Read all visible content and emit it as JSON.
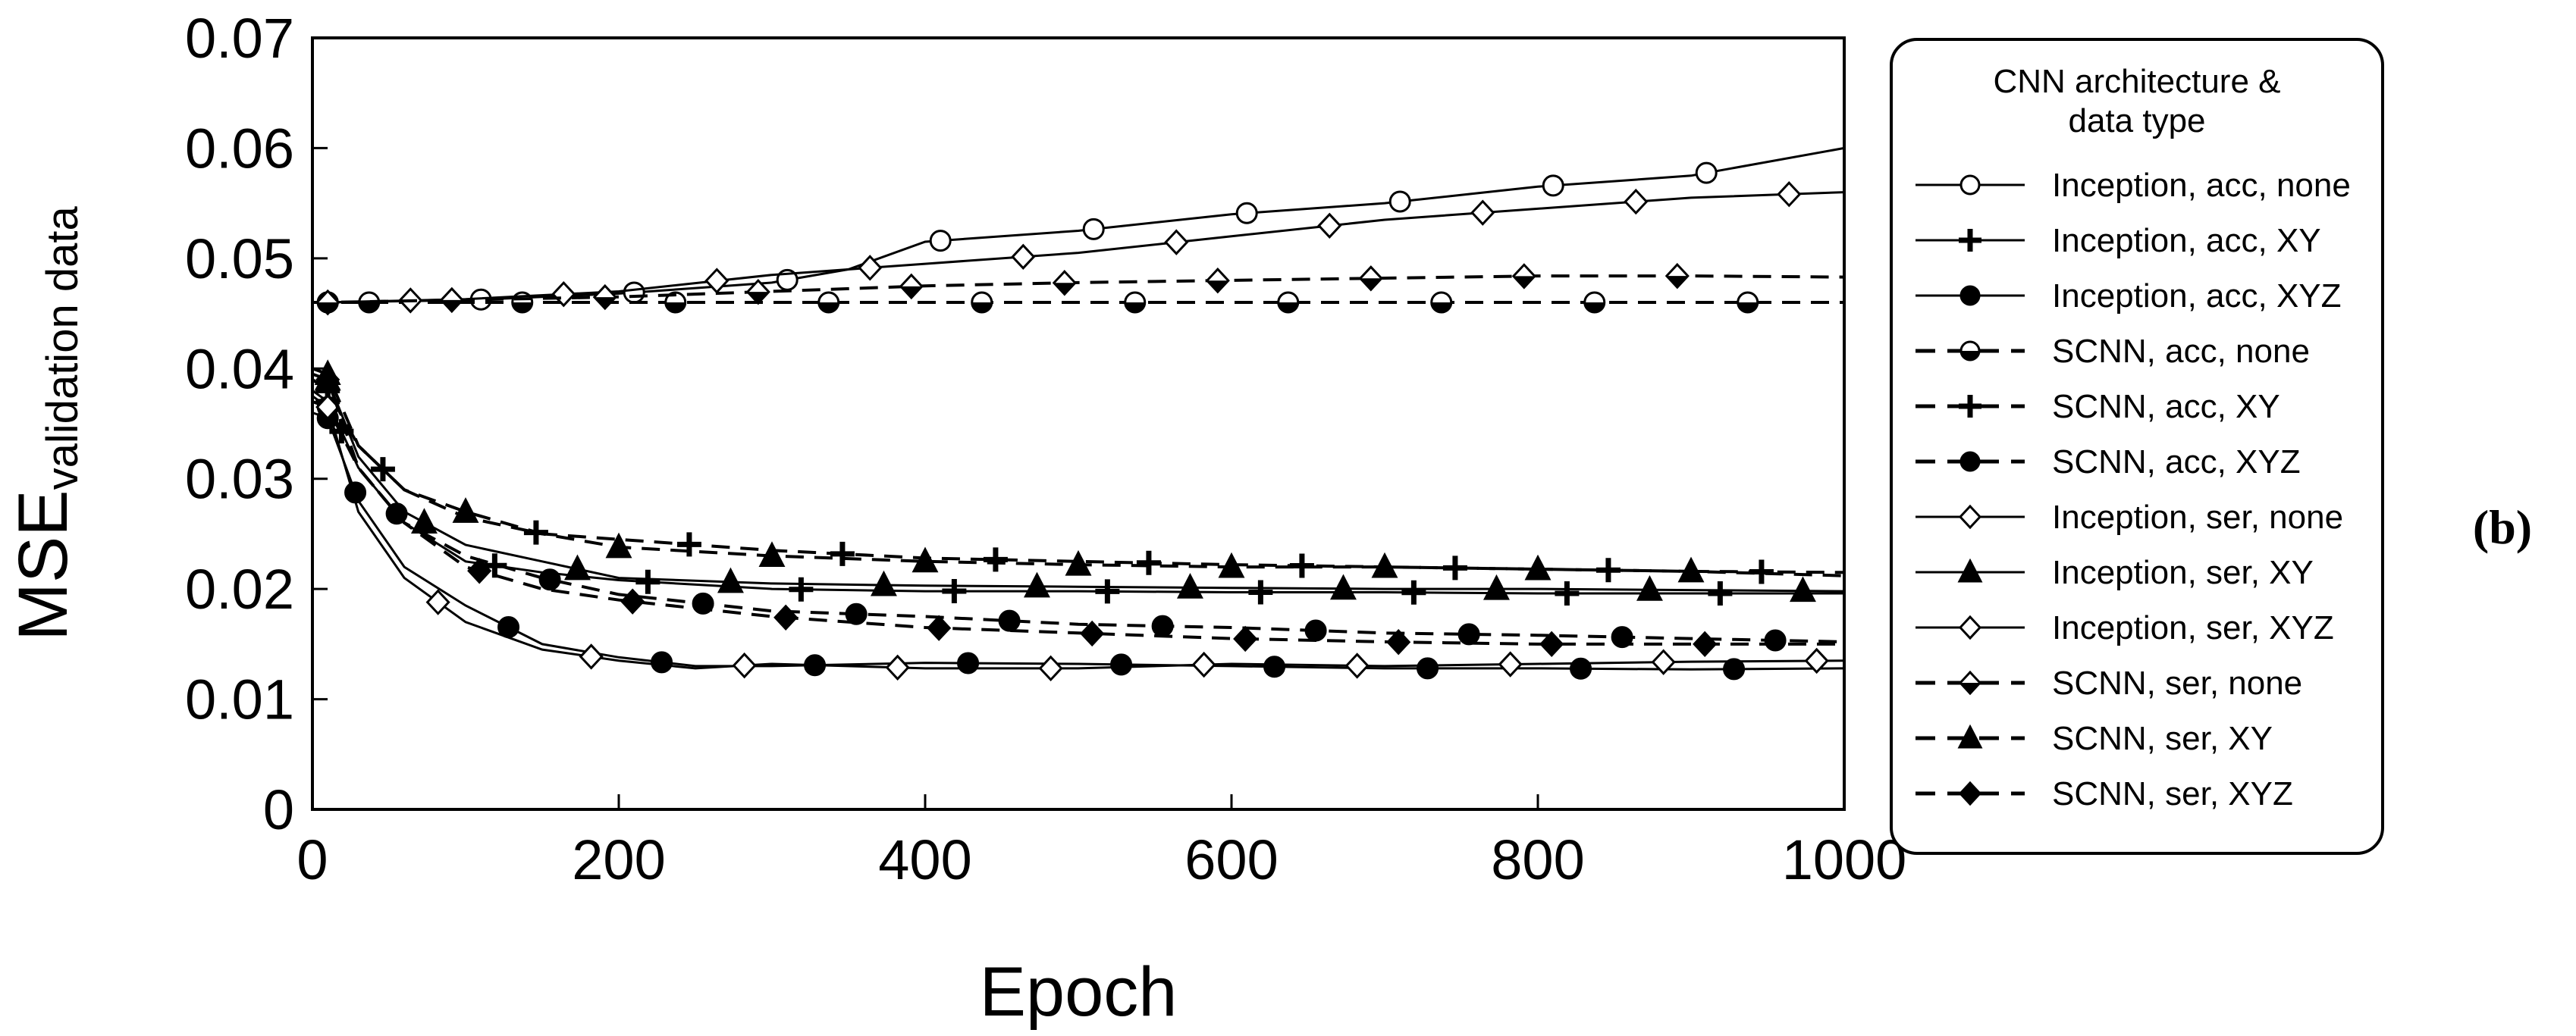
{
  "panel_label": "(b)",
  "chart_data": {
    "type": "line",
    "xlabel": "Epoch",
    "ylabel_main": "MSE",
    "ylabel_sub": "validation data",
    "xlim": [
      0,
      1000
    ],
    "ylim": [
      0,
      0.07
    ],
    "xticks": [
      0,
      200,
      400,
      600,
      800,
      1000
    ],
    "xtick_labels": [
      "0",
      "200",
      "400",
      "600",
      "800",
      "1000"
    ],
    "yticks": [
      0,
      0.01,
      0.02,
      0.03,
      0.04,
      0.05,
      0.06,
      0.07
    ],
    "ytick_labels": [
      "0",
      "0.01",
      "0.02",
      "0.03",
      "0.04",
      "0.05",
      "0.06",
      "0.07"
    ],
    "legend_title_line1": "CNN architecture &",
    "legend_title_line2": "data type",
    "legend_position": "right-outside",
    "series": [
      {
        "name": "Inception, acc, none",
        "dash": "solid",
        "marker": "circle-open",
        "x": [
          0,
          10,
          100,
          200,
          300,
          350,
          400,
          500,
          600,
          700,
          800,
          900,
          1000
        ],
        "y": [
          0.046,
          0.046,
          0.0462,
          0.0468,
          0.0478,
          0.049,
          0.0515,
          0.0525,
          0.054,
          0.055,
          0.0565,
          0.0575,
          0.06
        ]
      },
      {
        "name": "Inception, acc, XY",
        "dash": "solid",
        "marker": "plus",
        "x": [
          0,
          10,
          30,
          60,
          100,
          150,
          200,
          300,
          400,
          500,
          600,
          700,
          800,
          900,
          1000
        ],
        "y": [
          0.038,
          0.037,
          0.031,
          0.026,
          0.0225,
          0.0215,
          0.0208,
          0.02,
          0.0198,
          0.0198,
          0.0197,
          0.0197,
          0.0196,
          0.0196,
          0.0196
        ]
      },
      {
        "name": "Inception, acc, XYZ",
        "dash": "solid",
        "marker": "circle-filled",
        "x": [
          0,
          10,
          30,
          60,
          100,
          150,
          200,
          250,
          300,
          400,
          500,
          600,
          700,
          800,
          900,
          1000
        ],
        "y": [
          0.036,
          0.0355,
          0.028,
          0.022,
          0.0185,
          0.015,
          0.0138,
          0.013,
          0.013,
          0.0133,
          0.0132,
          0.013,
          0.0128,
          0.0128,
          0.0127,
          0.0128
        ]
      },
      {
        "name": "SCNN, acc, none",
        "dash": "dash",
        "marker": "circle-half",
        "x": [
          0,
          10,
          200,
          400,
          600,
          800,
          1000
        ],
        "y": [
          0.046,
          0.046,
          0.046,
          0.046,
          0.046,
          0.046,
          0.046
        ]
      },
      {
        "name": "SCNN, acc, XY",
        "dash": "dash",
        "marker": "plus",
        "x": [
          0,
          10,
          30,
          60,
          100,
          150,
          200,
          300,
          400,
          500,
          600,
          700,
          800,
          900,
          1000
        ],
        "y": [
          0.039,
          0.038,
          0.033,
          0.029,
          0.0265,
          0.025,
          0.0245,
          0.0235,
          0.0228,
          0.0225,
          0.0222,
          0.022,
          0.0218,
          0.0216,
          0.0215
        ]
      },
      {
        "name": "SCNN, acc, XYZ",
        "dash": "dash",
        "marker": "circle-filled",
        "x": [
          0,
          10,
          30,
          60,
          100,
          150,
          200,
          300,
          400,
          500,
          600,
          700,
          800,
          900,
          1000
        ],
        "y": [
          0.037,
          0.0365,
          0.031,
          0.026,
          0.023,
          0.021,
          0.0195,
          0.018,
          0.0175,
          0.0168,
          0.0165,
          0.016,
          0.0158,
          0.0155,
          0.0152
        ]
      },
      {
        "name": "Inception, ser, none",
        "dash": "solid",
        "marker": "diamond-open",
        "x": [
          0,
          10,
          100,
          200,
          300,
          400,
          500,
          600,
          700,
          800,
          900,
          1000
        ],
        "y": [
          0.046,
          0.046,
          0.0463,
          0.047,
          0.0485,
          0.0495,
          0.0505,
          0.052,
          0.0535,
          0.0545,
          0.0555,
          0.056
        ]
      },
      {
        "name": "Inception, ser, XY",
        "dash": "solid",
        "marker": "triangle-filled",
        "x": [
          0,
          10,
          30,
          60,
          100,
          150,
          200,
          300,
          400,
          500,
          600,
          700,
          800,
          900,
          1000
        ],
        "y": [
          0.0395,
          0.039,
          0.032,
          0.027,
          0.024,
          0.0225,
          0.021,
          0.0205,
          0.0203,
          0.0202,
          0.0201,
          0.02,
          0.02,
          0.0199,
          0.0198
        ]
      },
      {
        "name": "Inception, ser, XYZ",
        "dash": "solid",
        "marker": "diamond-open",
        "x": [
          0,
          10,
          30,
          60,
          100,
          150,
          200,
          250,
          300,
          400,
          500,
          600,
          700,
          800,
          900,
          1000
        ],
        "y": [
          0.0375,
          0.0365,
          0.027,
          0.021,
          0.017,
          0.0145,
          0.0135,
          0.0128,
          0.0132,
          0.0128,
          0.0128,
          0.0132,
          0.013,
          0.0132,
          0.0134,
          0.0135
        ]
      },
      {
        "name": "SCNN, ser, none",
        "dash": "dash",
        "marker": "diamond-half",
        "x": [
          0,
          10,
          200,
          400,
          500,
          600,
          700,
          800,
          900,
          1000
        ],
        "y": [
          0.046,
          0.046,
          0.0465,
          0.0475,
          0.0478,
          0.048,
          0.0482,
          0.0484,
          0.0484,
          0.0483
        ]
      },
      {
        "name": "SCNN, ser, XY",
        "dash": "dash",
        "marker": "triangle-filled",
        "x": [
          0,
          10,
          30,
          60,
          100,
          150,
          200,
          300,
          400,
          500,
          600,
          700,
          800,
          900,
          1000
        ],
        "y": [
          0.04,
          0.0395,
          0.033,
          0.029,
          0.027,
          0.025,
          0.0238,
          0.023,
          0.0225,
          0.0222,
          0.022,
          0.022,
          0.0218,
          0.0216,
          0.0212
        ]
      },
      {
        "name": "SCNN, ser, XYZ",
        "dash": "dash",
        "marker": "diamond-filled",
        "x": [
          0,
          10,
          30,
          60,
          100,
          150,
          200,
          300,
          400,
          500,
          600,
          700,
          800,
          900,
          1000
        ],
        "y": [
          0.0395,
          0.039,
          0.031,
          0.026,
          0.022,
          0.02,
          0.019,
          0.0175,
          0.0165,
          0.016,
          0.0155,
          0.0152,
          0.015,
          0.015,
          0.015
        ]
      }
    ]
  }
}
